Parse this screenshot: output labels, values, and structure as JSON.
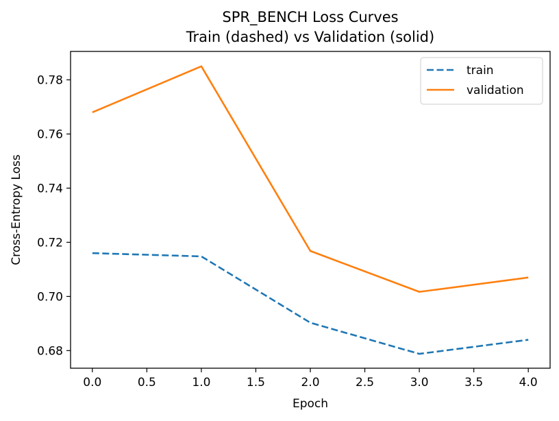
{
  "chart_data": {
    "type": "line",
    "title": "SPR_BENCH Loss Curves",
    "subtitle": "Train (dashed) vs Validation (solid)",
    "xlabel": "Epoch",
    "ylabel": "Cross-Entropy Loss",
    "x": [
      0,
      1,
      2,
      3,
      4
    ],
    "xlim": [
      -0.2,
      4.2
    ],
    "ylim": [
      0.6735,
      0.7905
    ],
    "xticks": [
      "0.0",
      "0.5",
      "1.0",
      "1.5",
      "2.0",
      "2.5",
      "3.0",
      "3.5",
      "4.0"
    ],
    "yticks": [
      "0.68",
      "0.70",
      "0.72",
      "0.74",
      "0.76",
      "0.78"
    ],
    "grid": false,
    "legend_position": "top-right",
    "series": [
      {
        "name": "train",
        "style": "dashed",
        "color": "#1f77b4",
        "values": [
          0.716,
          0.7148,
          0.6903,
          0.6788,
          0.684
        ]
      },
      {
        "name": "validation",
        "style": "solid",
        "color": "#ff7f0e",
        "values": [
          0.768,
          0.785,
          0.7168,
          0.7017,
          0.707
        ]
      }
    ]
  }
}
